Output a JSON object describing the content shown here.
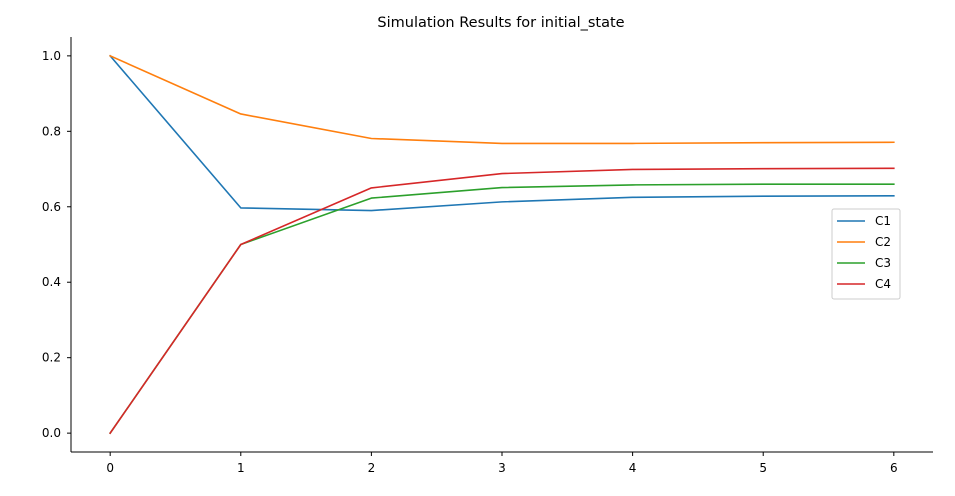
{
  "chart_data": {
    "type": "line",
    "title": "Simulation Results for initial_state",
    "xlabel": "",
    "ylabel": "",
    "x": [
      0,
      1,
      2,
      3,
      4,
      5,
      6
    ],
    "xlim": [
      -0.3,
      6.3
    ],
    "ylim": [
      -0.05,
      1.05
    ],
    "xticks": [
      0,
      1,
      2,
      3,
      4,
      5,
      6
    ],
    "yticks": [
      0.0,
      0.2,
      0.4,
      0.6,
      0.8,
      1.0
    ],
    "xtick_labels": [
      "0",
      "1",
      "2",
      "3",
      "4",
      "5",
      "6"
    ],
    "ytick_labels": [
      "0.0",
      "0.2",
      "0.4",
      "0.6",
      "0.8",
      "1.0"
    ],
    "grid": false,
    "legend_position": "center-right",
    "series": [
      {
        "name": "C1",
        "color": "#1f77b4",
        "values": [
          1.0,
          0.597,
          0.59,
          0.613,
          0.625,
          0.628,
          0.629
        ]
      },
      {
        "name": "C2",
        "color": "#ff7f0e",
        "values": [
          1.0,
          0.846,
          0.781,
          0.768,
          0.768,
          0.77,
          0.771
        ]
      },
      {
        "name": "C3",
        "color": "#2ca02c",
        "values": [
          0.0,
          0.5,
          0.623,
          0.651,
          0.658,
          0.66,
          0.66
        ]
      },
      {
        "name": "C4",
        "color": "#d62728",
        "values": [
          0.0,
          0.5,
          0.65,
          0.688,
          0.699,
          0.701,
          0.702
        ]
      }
    ]
  }
}
